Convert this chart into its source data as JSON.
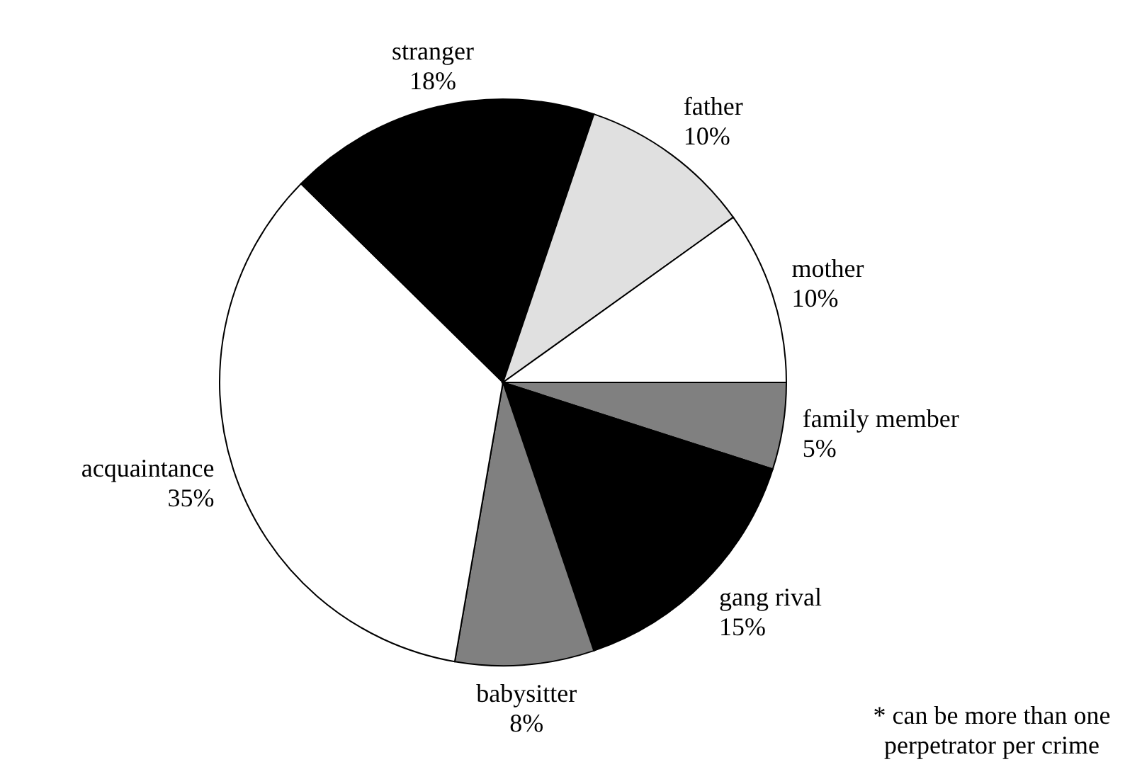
{
  "chart_data": {
    "type": "pie",
    "categories": [
      "family member",
      "gang rival",
      "babysitter",
      "acquaintance",
      "stranger",
      "father",
      "mother"
    ],
    "values": [
      5,
      15,
      8,
      35,
      18,
      10,
      10
    ],
    "value_labels": [
      "5%",
      "15%",
      "8%",
      "35%",
      "18%",
      "10%",
      "10%"
    ],
    "colors": [
      "#808080",
      "#000000",
      "#808080",
      "#ffffff",
      "#000000",
      "#e0e0e0",
      "#ffffff"
    ],
    "annotations": [
      "* can be more than one perpetrator per crime"
    ]
  }
}
